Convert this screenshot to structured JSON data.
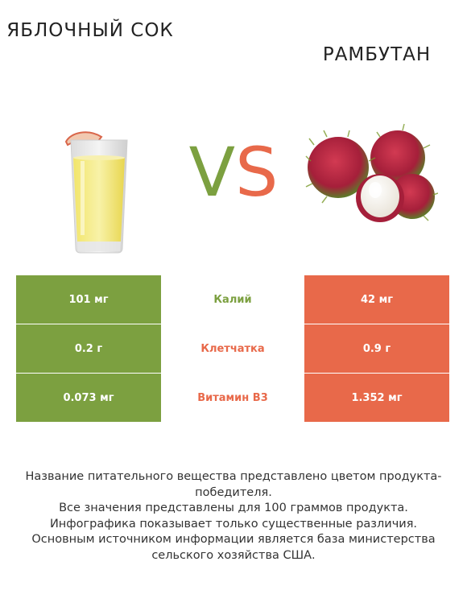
{
  "header": {
    "left_title": "ЯБЛОЧНЫЙ СОК",
    "right_title": "РАМБУТАН",
    "vs_v": "V",
    "vs_s": "S"
  },
  "colors": {
    "left_accent": "#7ca040",
    "right_accent": "#e8694a"
  },
  "icons": {
    "left": "apple-juice-glass-icon",
    "right": "rambutan-fruit-icon"
  },
  "rows": [
    {
      "left": "101 мг",
      "nutrient": "Калий",
      "right": "42 мг",
      "winner": "left"
    },
    {
      "left": "0.2 г",
      "nutrient": "Клетчатка",
      "right": "0.9 г",
      "winner": "right"
    },
    {
      "left": "0.073 мг",
      "nutrient": "Витамин B3",
      "right": "1.352 мг",
      "winner": "right"
    }
  ],
  "footer": {
    "line1": "Название питательного вещества представлено цветом продукта-победителя.",
    "line2": "Все значения представлены для 100 граммов продукта.",
    "line3": "Инфографика показывает только существенные различия.",
    "line4": "Основным источником информации является база министерства сельского хозяйства США."
  }
}
